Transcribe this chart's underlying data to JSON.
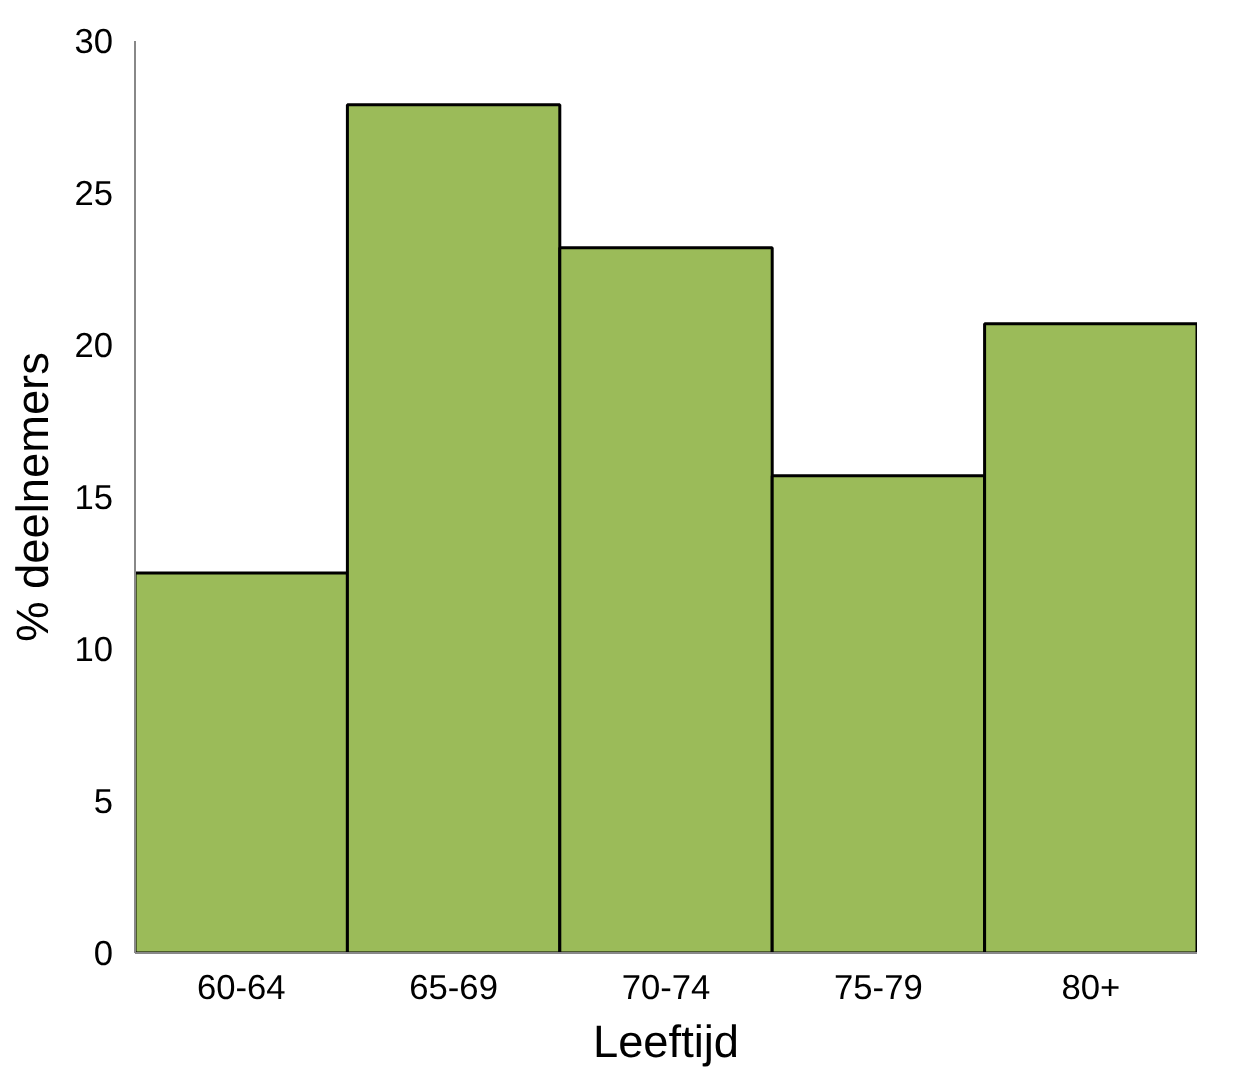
{
  "chart_data": {
    "type": "bar",
    "xlabel": "Leeftijd",
    "ylabel": "% deelnemers",
    "categories": [
      "60-64",
      "65-69",
      "70-74",
      "75-79",
      "80+"
    ],
    "values": [
      12.5,
      27.9,
      23.2,
      15.7,
      20.7
    ],
    "color": "#9bbb59",
    "ylim": [
      0,
      30
    ],
    "yticks": [
      0,
      5,
      10,
      15,
      20,
      25,
      30
    ],
    "grid": false
  }
}
